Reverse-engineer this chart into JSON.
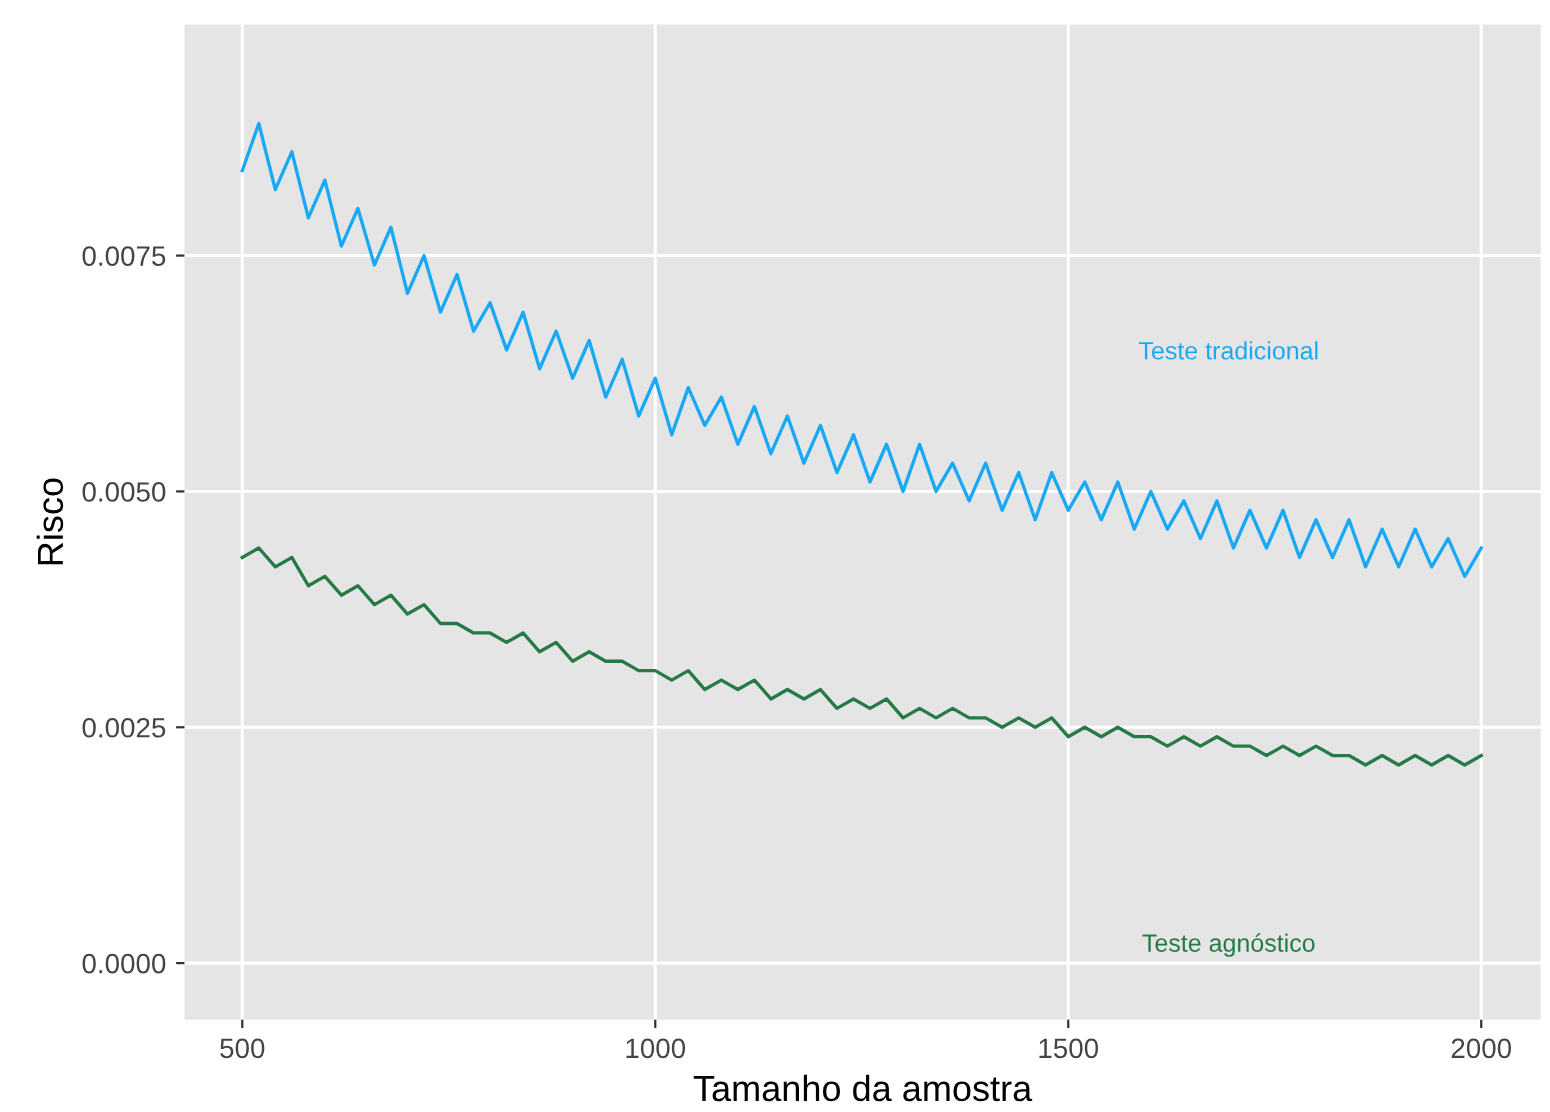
{
  "chart_data": {
    "type": "line",
    "xlabel": "Tamanho da amostra",
    "ylabel": "Risco",
    "x": [
      500,
      520,
      540,
      560,
      580,
      600,
      620,
      640,
      660,
      680,
      700,
      720,
      740,
      760,
      780,
      800,
      820,
      840,
      860,
      880,
      900,
      920,
      940,
      960,
      980,
      1000,
      1020,
      1040,
      1060,
      1080,
      1100,
      1120,
      1140,
      1160,
      1180,
      1200,
      1220,
      1240,
      1260,
      1280,
      1300,
      1320,
      1340,
      1360,
      1380,
      1400,
      1420,
      1440,
      1460,
      1480,
      1500,
      1520,
      1540,
      1560,
      1580,
      1600,
      1620,
      1640,
      1660,
      1680,
      1700,
      1720,
      1740,
      1760,
      1780,
      1800,
      1820,
      1840,
      1860,
      1880,
      1900,
      1920,
      1940,
      1960,
      1980,
      2000
    ],
    "series": [
      {
        "name": "Teste tradicional",
        "color": "#1aa9f7",
        "values": [
          0.0084,
          0.0089,
          0.0082,
          0.0086,
          0.0079,
          0.0083,
          0.0076,
          0.008,
          0.0074,
          0.0078,
          0.0071,
          0.0075,
          0.0069,
          0.0073,
          0.0067,
          0.007,
          0.0065,
          0.0069,
          0.0063,
          0.0067,
          0.0062,
          0.0066,
          0.006,
          0.0064,
          0.0058,
          0.0062,
          0.0056,
          0.0061,
          0.0057,
          0.006,
          0.0055,
          0.0059,
          0.0054,
          0.0058,
          0.0053,
          0.0057,
          0.0052,
          0.0056,
          0.0051,
          0.0055,
          0.005,
          0.0055,
          0.005,
          0.0053,
          0.0049,
          0.0053,
          0.0048,
          0.0052,
          0.0047,
          0.0052,
          0.0048,
          0.0051,
          0.0047,
          0.0051,
          0.0046,
          0.005,
          0.0046,
          0.0049,
          0.0045,
          0.0049,
          0.0044,
          0.0048,
          0.0044,
          0.0048,
          0.0043,
          0.0047,
          0.0043,
          0.0047,
          0.0042,
          0.0046,
          0.0042,
          0.0046,
          0.0042,
          0.0045,
          0.0041,
          0.0044
        ]
      },
      {
        "name": "Teste agnóstico",
        "color": "#257a46",
        "values": [
          0.0043,
          0.0044,
          0.0042,
          0.0043,
          0.004,
          0.0041,
          0.0039,
          0.004,
          0.0038,
          0.0039,
          0.0037,
          0.0038,
          0.0036,
          0.0036,
          0.0035,
          0.0035,
          0.0034,
          0.0035,
          0.0033,
          0.0034,
          0.0032,
          0.0033,
          0.0032,
          0.0032,
          0.0031,
          0.0031,
          0.003,
          0.0031,
          0.0029,
          0.003,
          0.0029,
          0.003,
          0.0028,
          0.0029,
          0.0028,
          0.0029,
          0.0027,
          0.0028,
          0.0027,
          0.0028,
          0.0026,
          0.0027,
          0.0026,
          0.0027,
          0.0026,
          0.0026,
          0.0025,
          0.0026,
          0.0025,
          0.0026,
          0.0024,
          0.0025,
          0.0024,
          0.0025,
          0.0024,
          0.0024,
          0.0023,
          0.0024,
          0.0023,
          0.0024,
          0.0023,
          0.0023,
          0.0022,
          0.0023,
          0.0022,
          0.0023,
          0.0022,
          0.0022,
          0.0021,
          0.0022,
          0.0021,
          0.0022,
          0.0021,
          0.0022,
          0.0021,
          0.0022
        ]
      }
    ],
    "xlim": [
      430,
      2072
    ],
    "ylim": [
      -0.0006,
      0.00995
    ],
    "xticks": [
      500,
      1000,
      1500,
      2000
    ],
    "yticks": [
      {
        "value": 0,
        "label": "0.0000"
      },
      {
        "value": 0.0025,
        "label": "0.0025"
      },
      {
        "value": 0.005,
        "label": "0.0050"
      },
      {
        "value": 0.0075,
        "label": "0.0075"
      }
    ],
    "grid": true
  }
}
